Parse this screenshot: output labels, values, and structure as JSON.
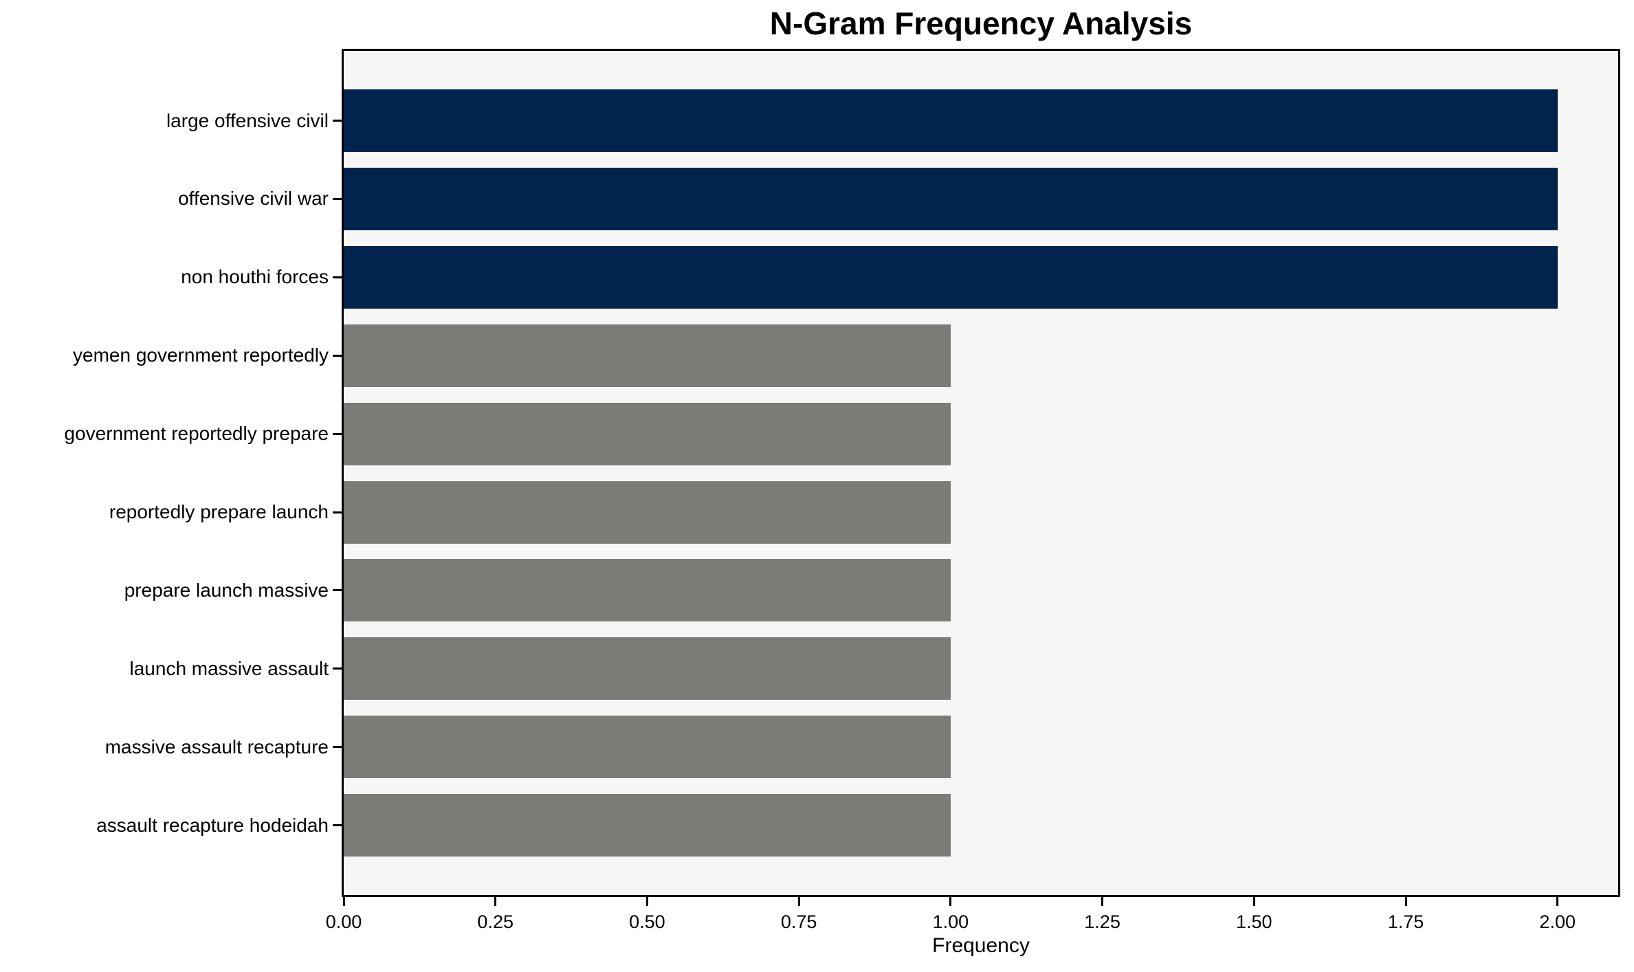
{
  "chart_data": {
    "type": "bar",
    "orientation": "horizontal",
    "title": "N-Gram Frequency Analysis",
    "xlabel": "Frequency",
    "ylabel": "",
    "categories": [
      "large offensive civil",
      "offensive civil war",
      "non houthi forces",
      "yemen government reportedly",
      "government reportedly prepare",
      "reportedly prepare launch",
      "prepare launch massive",
      "launch massive assault",
      "massive assault recapture",
      "assault recapture hodeidah"
    ],
    "values": [
      2,
      2,
      2,
      1,
      1,
      1,
      1,
      1,
      1,
      1
    ],
    "bar_colors": [
      "#02234E",
      "#02234E",
      "#02234E",
      "#7B7B78",
      "#7B7B78",
      "#7B7B78",
      "#7B7B78",
      "#7B7B78",
      "#7B7B78",
      "#7B7B78"
    ],
    "xlim": [
      0,
      2.1
    ],
    "x_tick_values": [
      0,
      0.25,
      0.5,
      0.75,
      1.0,
      1.25,
      1.5,
      1.75,
      2.0
    ],
    "x_tick_labels": [
      "0.00",
      "0.25",
      "0.50",
      "0.75",
      "1.00",
      "1.25",
      "1.50",
      "1.75",
      "2.00"
    ],
    "grid": false,
    "legend_position": "none",
    "colors": {
      "bar_highlight": "#02234E",
      "bar_default": "#7B7B78",
      "plot_background": "#F6F6F5",
      "figure_background": "#FFFFFF",
      "spine": "#000000",
      "text": "#000000"
    }
  }
}
